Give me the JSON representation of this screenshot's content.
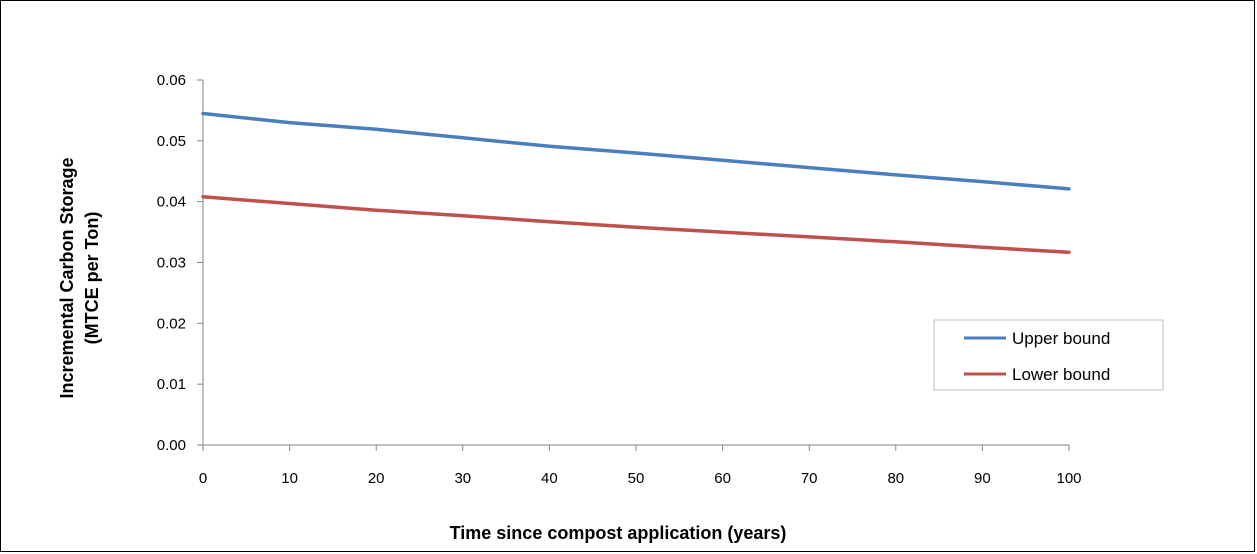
{
  "chart_data": {
    "type": "line",
    "title": "",
    "xlabel": "Time since compost application (years)",
    "ylabel_line1": "Incremental Carbon Storage",
    "ylabel_line2": "(MTCE per Ton)",
    "x": [
      0,
      10,
      20,
      30,
      40,
      50,
      60,
      70,
      80,
      90,
      100
    ],
    "x_tick_labels": [
      "0",
      "10",
      "20",
      "30",
      "40",
      "50",
      "60",
      "70",
      "80",
      "90",
      "100"
    ],
    "y_tick_labels": [
      "0.00",
      "0.01",
      "0.02",
      "0.03",
      "0.04",
      "0.05",
      "0.06"
    ],
    "xlim": [
      0,
      100
    ],
    "ylim": [
      0,
      0.06
    ],
    "grid": false,
    "legend_position": "right",
    "series": [
      {
        "name": "Upper bound",
        "color": "#4a7ebf",
        "values": [
          0.0545,
          0.053,
          0.0519,
          0.0505,
          0.0491,
          0.048,
          0.0468,
          0.0456,
          0.0444,
          0.0433,
          0.0421
        ]
      },
      {
        "name": "Lower bound",
        "color": "#c0504d",
        "values": [
          0.0408,
          0.0397,
          0.0386,
          0.0377,
          0.0367,
          0.0358,
          0.035,
          0.0342,
          0.0334,
          0.0325,
          0.0317
        ]
      }
    ]
  }
}
